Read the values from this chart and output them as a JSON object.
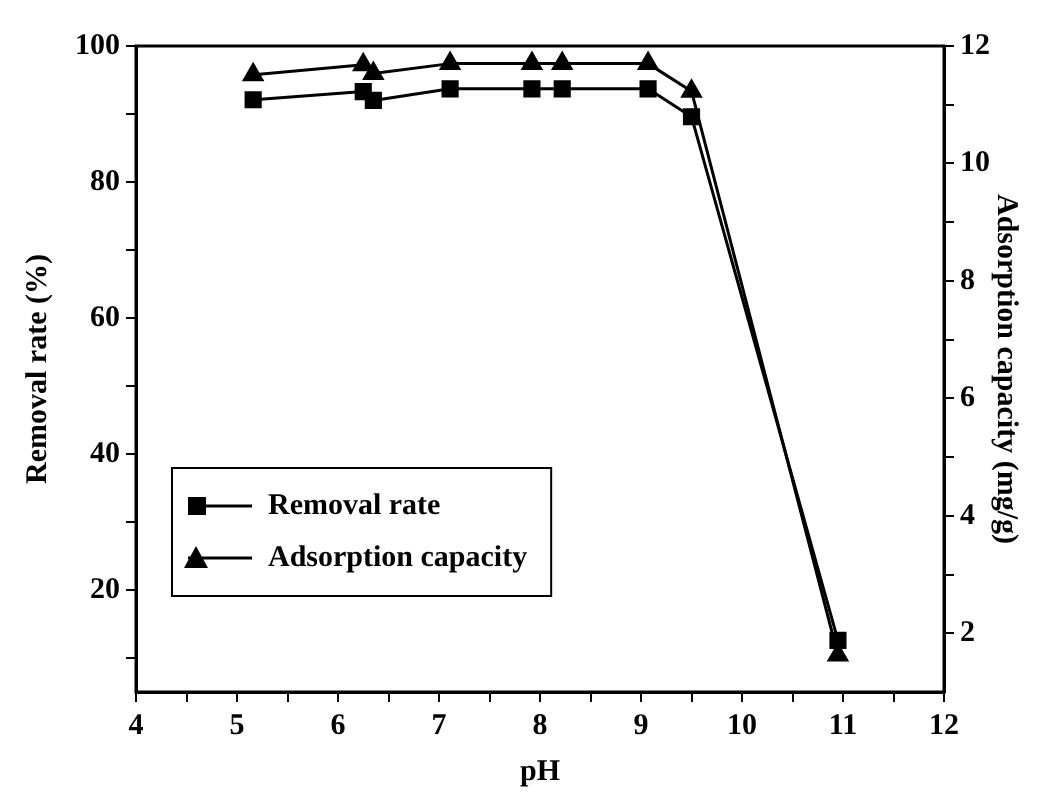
{
  "chart_data": {
    "type": "line",
    "xlabel": "pH",
    "ylabel": "Removal rate (%)",
    "y2label": "Adsorption capacity (mg/g)",
    "series": [
      {
        "name": "Removal rate",
        "color": "#000000",
        "marker": "square",
        "x": [
          5.16,
          6.25,
          6.35,
          7.11,
          7.92,
          8.22,
          9.07,
          9.5,
          10.95
        ],
        "values": [
          92.1,
          93.3,
          92.0,
          93.7,
          93.7,
          93.7,
          93.7,
          89.6,
          12.6
        ]
      },
      {
        "name": "Adsorption capacity",
        "color": "#000000",
        "marker": "triangle",
        "axis": "y2",
        "x": [
          5.16,
          6.25,
          6.35,
          7.11,
          7.92,
          8.22,
          9.07,
          9.5,
          10.95
        ],
        "values": [
          11.51,
          11.68,
          11.53,
          11.7,
          11.7,
          11.7,
          11.7,
          11.23,
          1.63
        ]
      }
    ],
    "xlim": [
      4,
      12
    ],
    "xticks": [
      4,
      {
        "value": 4.5,
        "label": null
      },
      5,
      {
        "value": 5.5,
        "label": null
      },
      6,
      {
        "value": 6.5,
        "label": null
      },
      7,
      {
        "value": 7.5,
        "label": null
      },
      8,
      {
        "value": 8.5,
        "label": null
      },
      9,
      {
        "value": 9.5,
        "label": null
      },
      10,
      {
        "value": 10.5,
        "label": null
      },
      11,
      {
        "value": 11.5,
        "label": null
      },
      12
    ],
    "ylim": [
      5,
      100
    ],
    "yticks": [
      {
        "value": 10,
        "label": null
      },
      20,
      {
        "value": 30,
        "label": null
      },
      40,
      {
        "value": 50,
        "label": null
      },
      60,
      {
        "value": 70,
        "label": null
      },
      80,
      {
        "value": 90,
        "label": null
      },
      100
    ],
    "y2lim": [
      1,
      12
    ],
    "y2ticks": [
      2,
      {
        "value": 3,
        "label": null
      },
      4,
      {
        "value": 5,
        "label": null
      },
      6,
      {
        "value": 7,
        "label": null
      },
      8,
      {
        "value": 9,
        "label": null
      },
      10,
      {
        "value": 11,
        "label": null
      },
      12
    ],
    "grid": false,
    "legend": "bottom left",
    "line_style": "solid"
  }
}
